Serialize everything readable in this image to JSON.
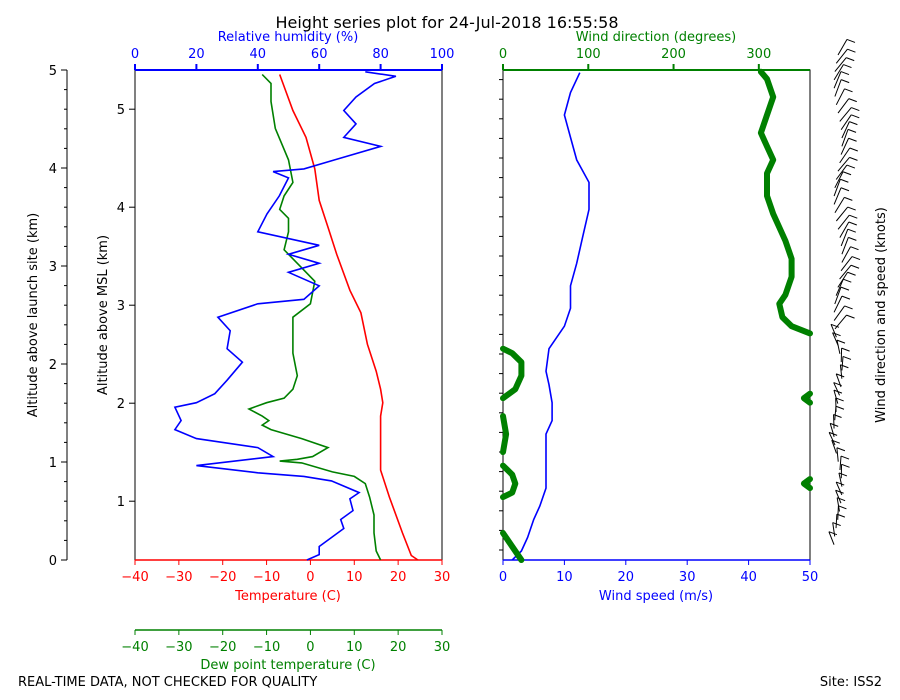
{
  "title": "Height series plot for 24-Jul-2018 16:55:58",
  "footer_left": "REAL-TIME DATA, NOT CHECKED FOR QUALITY",
  "footer_right": "Site: ISS2",
  "chart_data": [
    {
      "type": "line",
      "panel": "thermo",
      "axes": {
        "launch_alt_label": "Altitude above launch site (km)",
        "launch_alt_ticks": [
          "0",
          "1",
          "2",
          "3",
          "4",
          "5"
        ],
        "msl_alt_label": "Altitude above MSL (km)",
        "msl_alt_ticks": [
          "1",
          "2",
          "3",
          "4",
          "5"
        ],
        "rh_label": "Relative humidity (%)",
        "rh_ticks": [
          "0",
          "20",
          "40",
          "60",
          "80",
          "100"
        ],
        "rh_range": [
          0,
          100
        ],
        "temp_label": "Temperature (C)",
        "temp_ticks": [
          "−40",
          "−30",
          "−20",
          "−10",
          "0",
          "10",
          "20",
          "30"
        ],
        "temp_range": [
          -40,
          30
        ],
        "dew_label": "Dew point temperature (C)",
        "dew_ticks": [
          "−40",
          "−30",
          "−20",
          "−10",
          "0",
          "10",
          "20",
          "30"
        ],
        "dew_range": [
          -40,
          30
        ],
        "alt_range_km": [
          0,
          5.45
        ]
      },
      "series": [
        {
          "color": "#ff0000",
          "x_unit": "C",
          "points": [
            [
              24.5,
              0
            ],
            [
              23,
              0.05
            ],
            [
              21,
              0.3
            ],
            [
              18,
              0.7
            ],
            [
              16,
              1.0
            ],
            [
              16,
              1.3
            ],
            [
              16,
              1.6
            ],
            [
              16.5,
              1.75
            ],
            [
              16,
              1.9
            ],
            [
              15,
              2.1
            ],
            [
              13,
              2.4
            ],
            [
              11.5,
              2.75
            ],
            [
              9,
              3.0
            ],
            [
              6,
              3.4
            ],
            [
              4,
              3.7
            ],
            [
              2,
              4.0
            ],
            [
              1,
              4.35
            ],
            [
              -1,
              4.7
            ],
            [
              -4,
              5.0
            ],
            [
              -7,
              5.4
            ]
          ]
        },
        {
          "color": "#008000",
          "x_unit": "C",
          "points": [
            [
              16,
              0
            ],
            [
              15,
              0.1
            ],
            [
              14.5,
              0.3
            ],
            [
              14.5,
              0.5
            ],
            [
              13.5,
              0.7
            ],
            [
              12.5,
              0.85
            ],
            [
              10,
              0.93
            ],
            [
              5,
              0.98
            ],
            [
              -2,
              1.08
            ],
            [
              -7,
              1.1
            ],
            [
              -3,
              1.12
            ],
            [
              0.5,
              1.15
            ],
            [
              4,
              1.25
            ],
            [
              -2,
              1.35
            ],
            [
              -9,
              1.45
            ],
            [
              -11,
              1.5
            ],
            [
              -9.5,
              1.55
            ],
            [
              -11,
              1.6
            ],
            [
              -14,
              1.68
            ],
            [
              -10,
              1.75
            ],
            [
              -6,
              1.8
            ],
            [
              -4,
              1.9
            ],
            [
              -3,
              2.05
            ],
            [
              -4,
              2.3
            ],
            [
              -4,
              2.7
            ],
            [
              0,
              2.85
            ],
            [
              1,
              3.1
            ],
            [
              -2,
              3.25
            ],
            [
              -6,
              3.45
            ],
            [
              -5,
              3.65
            ],
            [
              -5,
              3.8
            ],
            [
              -7,
              3.9
            ],
            [
              -6,
              4.05
            ],
            [
              -4,
              4.2
            ],
            [
              -5,
              4.45
            ],
            [
              -8,
              4.8
            ],
            [
              -9,
              5.1
            ],
            [
              -9,
              5.3
            ],
            [
              -11,
              5.4
            ]
          ]
        },
        {
          "color": "#0000ff",
          "x_unit": "%",
          "points": [
            [
              56,
              0
            ],
            [
              60,
              0.06
            ],
            [
              60,
              0.15
            ],
            [
              64,
              0.25
            ],
            [
              68,
              0.35
            ],
            [
              67,
              0.45
            ],
            [
              71,
              0.55
            ],
            [
              70,
              0.68
            ],
            [
              73,
              0.75
            ],
            [
              64,
              0.88
            ],
            [
              55,
              0.93
            ],
            [
              40,
              0.97
            ],
            [
              20,
              1.05
            ],
            [
              45,
              1.15
            ],
            [
              40,
              1.25
            ],
            [
              20,
              1.35
            ],
            [
              13,
              1.45
            ],
            [
              15,
              1.55
            ],
            [
              13,
              1.7
            ],
            [
              20,
              1.75
            ],
            [
              26,
              1.85
            ],
            [
              30,
              2.0
            ],
            [
              35,
              2.2
            ],
            [
              30,
              2.35
            ],
            [
              31,
              2.55
            ],
            [
              27,
              2.7
            ],
            [
              40,
              2.85
            ],
            [
              55,
              2.9
            ],
            [
              60,
              3.05
            ],
            [
              50,
              3.2
            ],
            [
              60,
              3.3
            ],
            [
              50,
              3.4
            ],
            [
              60,
              3.5
            ],
            [
              40,
              3.65
            ],
            [
              43,
              3.85
            ],
            [
              47,
              4.05
            ],
            [
              50,
              4.25
            ],
            [
              45,
              4.32
            ],
            [
              55,
              4.35
            ],
            [
              65,
              4.45
            ],
            [
              80,
              4.6
            ],
            [
              68,
              4.7
            ],
            [
              72,
              4.85
            ],
            [
              68,
              5.0
            ],
            [
              72,
              5.15
            ],
            [
              78,
              5.3
            ],
            [
              85,
              5.38
            ],
            [
              75,
              5.43
            ]
          ]
        }
      ]
    },
    {
      "type": "line",
      "panel": "wind",
      "axes": {
        "speed_label": "Wind speed (m/s)",
        "speed_ticks": [
          "0",
          "10",
          "20",
          "30",
          "40",
          "50"
        ],
        "speed_range": [
          0,
          50
        ],
        "dir_label": "Wind direction (degrees)",
        "dir_ticks": [
          "0",
          "100",
          "200",
          "300"
        ],
        "dir_range": [
          0,
          360
        ],
        "barb_label": "Wind direction and speed (knots)"
      },
      "series": [
        {
          "color": "#0000ff",
          "x_unit": "m/s",
          "points": [
            [
              1.5,
              0
            ],
            [
              3,
              0.1
            ],
            [
              4,
              0.25
            ],
            [
              5,
              0.45
            ],
            [
              6,
              0.6
            ],
            [
              7,
              0.8
            ],
            [
              7,
              1.0
            ],
            [
              7,
              1.2
            ],
            [
              7,
              1.4
            ],
            [
              8,
              1.55
            ],
            [
              8,
              1.75
            ],
            [
              7.5,
              1.95
            ],
            [
              7,
              2.1
            ],
            [
              7.5,
              2.35
            ],
            [
              10,
              2.6
            ],
            [
              11,
              2.8
            ],
            [
              11,
              3.05
            ],
            [
              12,
              3.3
            ],
            [
              13,
              3.6
            ],
            [
              14,
              3.9
            ],
            [
              14,
              4.2
            ],
            [
              12,
              4.45
            ],
            [
              11,
              4.7
            ],
            [
              10,
              4.95
            ],
            [
              11,
              5.2
            ],
            [
              12.5,
              5.42
            ]
          ]
        },
        {
          "color": "#008000",
          "x_unit": "deg",
          "segments": [
            [
              [
                3,
                0
              ],
              [
                1,
                0.2
              ],
              [
                0,
                0.3
              ]
            ],
            [
              [
                0,
                0.7
              ],
              [
                1.5,
                0.75
              ],
              [
                2,
                0.85
              ],
              [
                1.5,
                0.95
              ],
              [
                0,
                1.05
              ]
            ],
            [
              [
                0,
                1.2
              ],
              [
                0.5,
                1.4
              ],
              [
                0,
                1.6
              ]
            ],
            [
              [
                0,
                1.8
              ],
              [
                2,
                1.9
              ],
              [
                3,
                2.05
              ],
              [
                3,
                2.2
              ],
              [
                1.5,
                2.3
              ],
              [
                0,
                2.35
              ]
            ],
            [
              [
                50,
                0.8
              ],
              [
                49,
                0.85
              ],
              [
                50,
                0.9
              ]
            ],
            [
              [
                50,
                1.75
              ],
              [
                49,
                1.8
              ],
              [
                50,
                1.85
              ]
            ],
            [
              [
                50,
                2.52
              ],
              [
                47,
                2.6
              ],
              [
                45.5,
                2.7
              ],
              [
                45,
                2.85
              ],
              [
                46,
                2.95
              ],
              [
                47,
                3.15
              ],
              [
                47,
                3.35
              ],
              [
                46,
                3.55
              ],
              [
                45,
                3.7
              ],
              [
                44,
                3.85
              ],
              [
                43,
                4.05
              ],
              [
                43,
                4.3
              ],
              [
                44,
                4.45
              ],
              [
                43,
                4.6
              ],
              [
                42,
                4.75
              ],
              [
                43,
                4.95
              ],
              [
                44,
                5.15
              ],
              [
                43,
                5.35
              ],
              [
                42,
                5.43
              ]
            ]
          ]
        }
      ]
    }
  ]
}
